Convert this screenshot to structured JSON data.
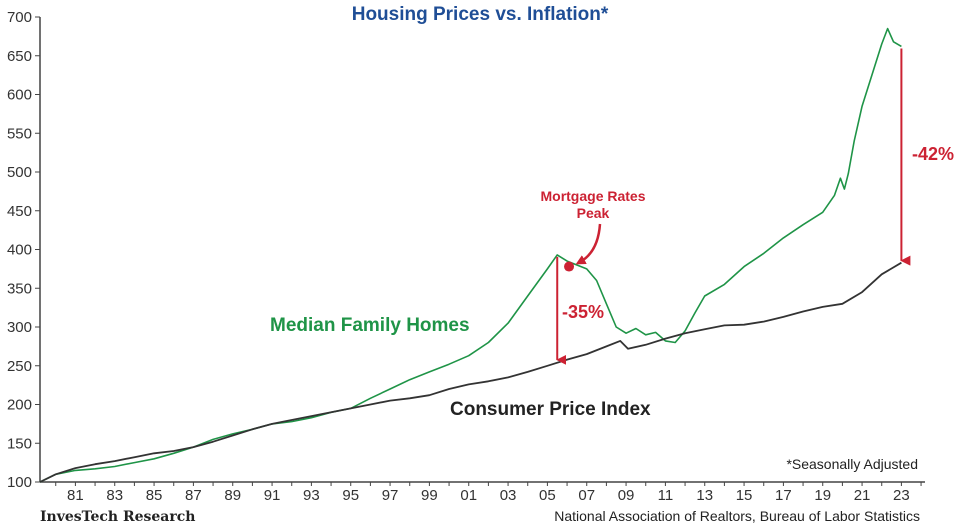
{
  "chart_data": {
    "type": "line",
    "title": "Housing Prices vs. Inflation*",
    "xlabel": "",
    "ylabel": "",
    "xlim": [
      1979.2,
      2024.2
    ],
    "ylim": [
      100,
      700
    ],
    "y_ticks": [
      100,
      150,
      200,
      250,
      300,
      350,
      400,
      450,
      500,
      550,
      600,
      650,
      700
    ],
    "x_ticks": [
      {
        "year": 1981,
        "label": "81"
      },
      {
        "year": 1983,
        "label": "83"
      },
      {
        "year": 1985,
        "label": "85"
      },
      {
        "year": 1987,
        "label": "87"
      },
      {
        "year": 1989,
        "label": "89"
      },
      {
        "year": 1991,
        "label": "91"
      },
      {
        "year": 1993,
        "label": "93"
      },
      {
        "year": 1995,
        "label": "95"
      },
      {
        "year": 1997,
        "label": "97"
      },
      {
        "year": 1999,
        "label": "99"
      },
      {
        "year": 2001,
        "label": "01"
      },
      {
        "year": 2003,
        "label": "03"
      },
      {
        "year": 2005,
        "label": "05"
      },
      {
        "year": 2007,
        "label": "07"
      },
      {
        "year": 2009,
        "label": "09"
      },
      {
        "year": 2011,
        "label": "11"
      },
      {
        "year": 2013,
        "label": "13"
      },
      {
        "year": 2015,
        "label": "15"
      },
      {
        "year": 2017,
        "label": "17"
      },
      {
        "year": 2019,
        "label": "19"
      },
      {
        "year": 2021,
        "label": "21"
      },
      {
        "year": 2023,
        "label": "23"
      }
    ],
    "grid": false,
    "series": [
      {
        "name": "Median Family Homes",
        "color": "#1f9447",
        "points": [
          [
            1979.2,
            100
          ],
          [
            1980,
            110
          ],
          [
            1981,
            115
          ],
          [
            1982,
            117
          ],
          [
            1983,
            120
          ],
          [
            1984,
            125
          ],
          [
            1985,
            130
          ],
          [
            1986,
            137
          ],
          [
            1987,
            145
          ],
          [
            1988,
            155
          ],
          [
            1989,
            162
          ],
          [
            1990,
            168
          ],
          [
            1991,
            175
          ],
          [
            1992,
            178
          ],
          [
            1993,
            183
          ],
          [
            1994,
            190
          ],
          [
            1995,
            195
          ],
          [
            1996,
            208
          ],
          [
            1997,
            220
          ],
          [
            1998,
            232
          ],
          [
            1999,
            242
          ],
          [
            2000,
            252
          ],
          [
            2001,
            263
          ],
          [
            2002,
            280
          ],
          [
            2003,
            305
          ],
          [
            2004,
            340
          ],
          [
            2005,
            375
          ],
          [
            2005.5,
            393
          ],
          [
            2006,
            385
          ],
          [
            2006.5,
            380
          ],
          [
            2007,
            375
          ],
          [
            2007.5,
            360
          ],
          [
            2008,
            330
          ],
          [
            2008.5,
            300
          ],
          [
            2009,
            292
          ],
          [
            2009.5,
            298
          ],
          [
            2010,
            290
          ],
          [
            2010.5,
            293
          ],
          [
            2011,
            282
          ],
          [
            2011.5,
            280
          ],
          [
            2012,
            295
          ],
          [
            2012.5,
            318
          ],
          [
            2013,
            340
          ],
          [
            2014,
            355
          ],
          [
            2015,
            378
          ],
          [
            2016,
            395
          ],
          [
            2017,
            415
          ],
          [
            2018,
            432
          ],
          [
            2019,
            448
          ],
          [
            2019.6,
            470
          ],
          [
            2019.9,
            492
          ],
          [
            2020.1,
            478
          ],
          [
            2020.3,
            498
          ],
          [
            2020.6,
            540
          ],
          [
            2021,
            585
          ],
          [
            2021.5,
            625
          ],
          [
            2022,
            665
          ],
          [
            2022.3,
            685
          ],
          [
            2022.6,
            668
          ],
          [
            2023,
            662
          ]
        ]
      },
      {
        "name": "Consumer Price Index",
        "color": "#333333",
        "points": [
          [
            1979.2,
            100
          ],
          [
            1980,
            110
          ],
          [
            1981,
            118
          ],
          [
            1982,
            123
          ],
          [
            1983,
            127
          ],
          [
            1984,
            132
          ],
          [
            1985,
            137
          ],
          [
            1986,
            140
          ],
          [
            1987,
            145
          ],
          [
            1988,
            152
          ],
          [
            1989,
            160
          ],
          [
            1990,
            168
          ],
          [
            1991,
            175
          ],
          [
            1992,
            180
          ],
          [
            1993,
            185
          ],
          [
            1994,
            190
          ],
          [
            1995,
            195
          ],
          [
            1996,
            200
          ],
          [
            1997,
            205
          ],
          [
            1998,
            208
          ],
          [
            1999,
            212
          ],
          [
            2000,
            220
          ],
          [
            2001,
            226
          ],
          [
            2002,
            230
          ],
          [
            2003,
            235
          ],
          [
            2004,
            242
          ],
          [
            2005,
            250
          ],
          [
            2006,
            258
          ],
          [
            2007,
            265
          ],
          [
            2008,
            275
          ],
          [
            2008.7,
            282
          ],
          [
            2009.1,
            272
          ],
          [
            2010,
            277
          ],
          [
            2011,
            285
          ],
          [
            2012,
            292
          ],
          [
            2013,
            297
          ],
          [
            2014,
            302
          ],
          [
            2015,
            303
          ],
          [
            2016,
            307
          ],
          [
            2017,
            313
          ],
          [
            2018,
            320
          ],
          [
            2019,
            326
          ],
          [
            2020,
            330
          ],
          [
            2021,
            345
          ],
          [
            2022,
            368
          ],
          [
            2023,
            383
          ]
        ]
      }
    ],
    "annotations": {
      "peak_label_line1": "Mortgage Rates",
      "peak_label_line2": "Peak",
      "peak_marker": {
        "x": 2006.1,
        "y": 378
      },
      "drop_2005": {
        "label": "-35%",
        "x": 2005.5,
        "y_from": 393,
        "y_to": 255
      },
      "drop_2022": {
        "label": "-42%",
        "x": 2023,
        "y_from": 662,
        "y_to": 383
      },
      "accent_color": "#cc2233"
    },
    "series_labels": {
      "homes": "Median Family Homes",
      "cpi": "Consumer Price Index"
    },
    "footnote": "*Seasonally Adjusted",
    "title_color": "#1f4e96"
  },
  "footer": {
    "brand": "InvesTech Research",
    "source": "National Association of Realtors, Bureau of Labor Statistics"
  }
}
